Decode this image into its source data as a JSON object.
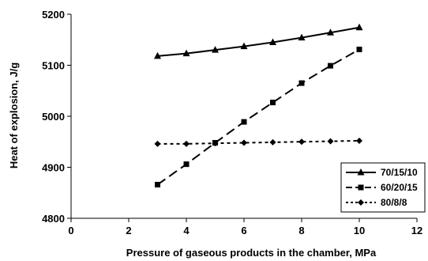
{
  "chart_data": {
    "type": "line",
    "xlabel": "Pressure of gaseous products in the chamber, MPa",
    "ylabel": "Heat of explosion, J/g",
    "xlim": [
      0,
      12
    ],
    "ylim": [
      4800,
      5200
    ],
    "x_ticks": [
      "0",
      "2",
      "4",
      "6",
      "8",
      "10",
      "12"
    ],
    "y_ticks": [
      "4800",
      "4900",
      "5000",
      "5100",
      "5200"
    ],
    "grid": false,
    "legend_position": "bottom-right",
    "series": [
      {
        "name": "70/15/10",
        "marker": "triangle",
        "dash": "solid",
        "x": [
          3,
          4,
          5,
          6,
          7,
          8,
          9,
          10
        ],
        "y": [
          5118,
          5123,
          5130,
          5137,
          5145,
          5154,
          5164,
          5174
        ]
      },
      {
        "name": "60/20/15",
        "marker": "square",
        "dash": "long-dash",
        "x": [
          3,
          4,
          5,
          6,
          7,
          8,
          9,
          10
        ],
        "y": [
          4866,
          4906,
          4948,
          4989,
          5027,
          5065,
          5099,
          5131
        ]
      },
      {
        "name": "80/8/8",
        "marker": "diamond",
        "dash": "dotted",
        "x": [
          3,
          4,
          5,
          6,
          7,
          8,
          9,
          10
        ],
        "y": [
          4946,
          4946,
          4947,
          4948,
          4949,
          4950,
          4951,
          4952
        ]
      }
    ]
  }
}
